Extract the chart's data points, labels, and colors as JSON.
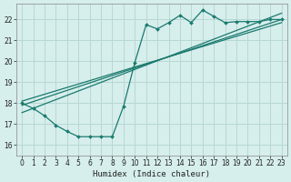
{
  "xlabel": "Humidex (Indice chaleur)",
  "background_color": "#d6eeec",
  "grid_color": "#b8d8d4",
  "line_color": "#1a7a6e",
  "x_ticks": [
    0,
    1,
    2,
    3,
    4,
    5,
    6,
    7,
    8,
    9,
    10,
    11,
    12,
    13,
    14,
    15,
    16,
    17,
    18,
    19,
    20,
    21,
    22,
    23
  ],
  "y_ticks": [
    16,
    17,
    18,
    19,
    20,
    21,
    22
  ],
  "xlim": [
    -0.5,
    23.5
  ],
  "ylim": [
    15.5,
    22.75
  ],
  "curve1_x": [
    0,
    1,
    2,
    3,
    4,
    5,
    6,
    7,
    8,
    9,
    10,
    11,
    12,
    13,
    14,
    15,
    16,
    17,
    18,
    19,
    20,
    21,
    22,
    23
  ],
  "curve1_y": [
    18.0,
    17.75,
    17.4,
    16.95,
    16.65,
    16.4,
    16.4,
    16.4,
    16.4,
    17.85,
    19.95,
    21.75,
    21.55,
    21.85,
    22.2,
    21.85,
    22.45,
    22.15,
    21.85,
    21.9,
    21.9,
    21.9,
    22.0,
    22.0
  ],
  "curve2_x": [
    0,
    23
  ],
  "curve2_y": [
    17.9,
    22.0
  ],
  "curve3_x": [
    0,
    23
  ],
  "curve3_y": [
    18.1,
    21.85
  ],
  "curve4_x": [
    0,
    23
  ],
  "curve4_y": [
    17.55,
    22.3
  ]
}
